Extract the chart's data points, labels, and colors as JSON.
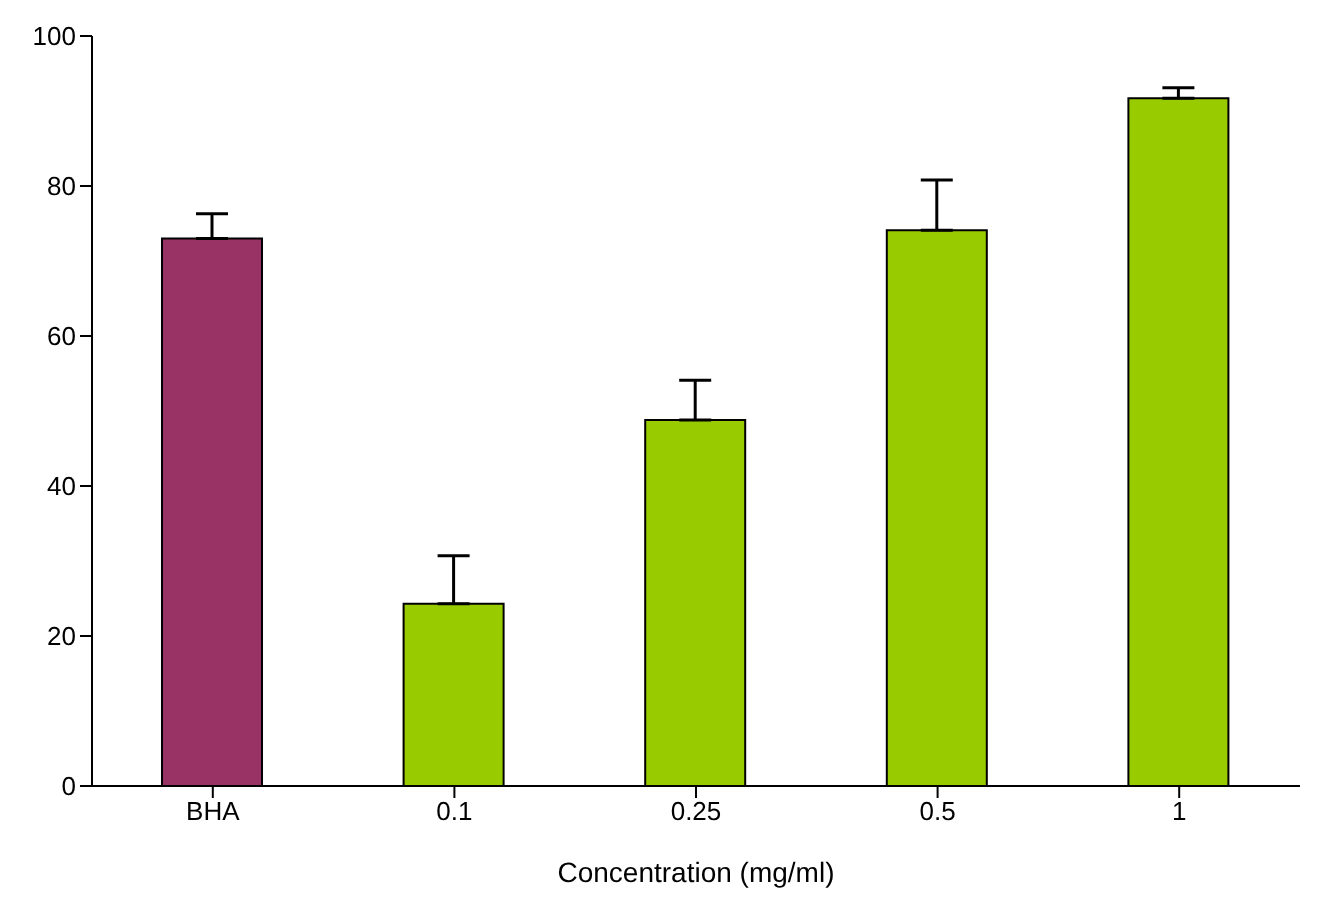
{
  "chart_data": {
    "type": "bar",
    "xlabel": "Concentration (mg/ml)",
    "categories": [
      "BHA",
      "0.1",
      "0.25",
      "0.5",
      "1"
    ],
    "values": [
      73,
      24.3,
      48.8,
      74.1,
      91.7
    ],
    "colors": [
      "#993366",
      "#99cc00",
      "#99cc00",
      "#99cc00",
      "#99cc00"
    ],
    "errors": [
      [
        73,
        76.3
      ],
      [
        24.3,
        30.7
      ],
      [
        48.8,
        54.1
      ],
      [
        74.1,
        80.8
      ],
      [
        91.7,
        93.1
      ]
    ],
    "ylim": [
      0,
      100
    ],
    "yticks": [
      0,
      20,
      40,
      60,
      80,
      100
    ],
    "grid": false,
    "legend": false
  }
}
